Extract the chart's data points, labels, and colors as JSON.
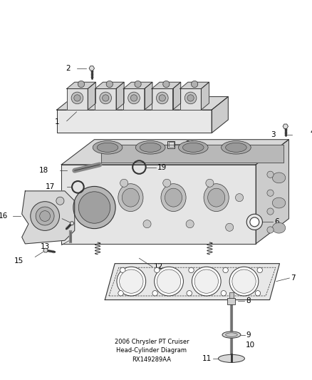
{
  "title": "2006 Chrysler PT Cruiser\nHead-Cylinder Diagram\nRX149289AA",
  "background_color": "#ffffff",
  "lc": "#333333",
  "lc_light": "#888888",
  "figsize": [
    4.38,
    5.33
  ],
  "dpi": 100,
  "label_fontsize": 7.5,
  "title_fontsize": 6.0
}
